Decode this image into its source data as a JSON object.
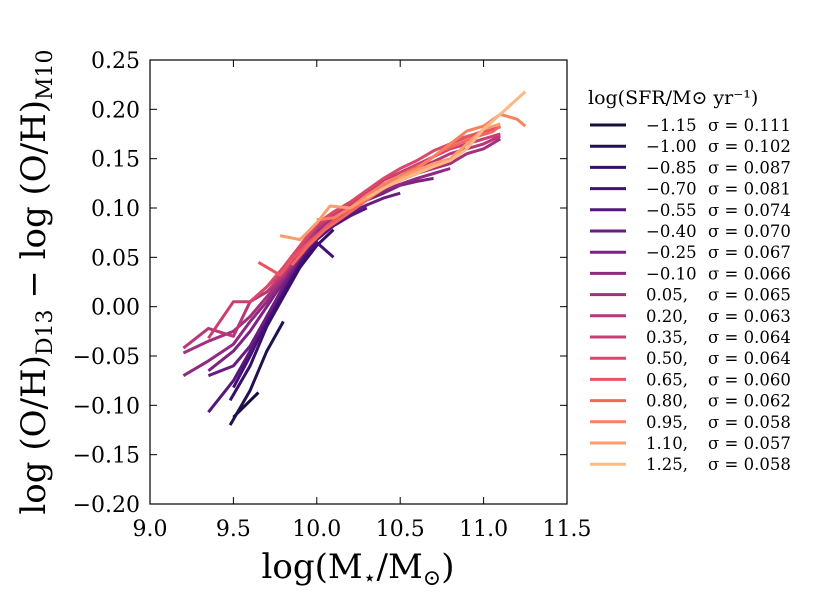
{
  "chart_data": {
    "type": "line",
    "xlabel": "log(M⋆/M⊙)",
    "ylabel": "log (O/H)D13 − log (O/H)M10",
    "ylabel_main_1": "log (O/H)",
    "ylabel_sub_1": "D13",
    "ylabel_main_2": " − log (O/H)",
    "ylabel_sub_2": "M10",
    "xlabel_main_1": "log(M",
    "xlabel_sub_1": "⋆",
    "xlabel_main_2": "/M",
    "xlabel_sub_2": "⊙",
    "xlabel_main_3": ")",
    "xlim": [
      9.0,
      11.5
    ],
    "ylim": [
      -0.2,
      0.25
    ],
    "x_ticks": [
      9.0,
      9.5,
      10.0,
      10.5,
      11.0,
      11.5
    ],
    "x_tick_labels": [
      "9.0",
      "9.5",
      "10.0",
      "10.5",
      "11.0",
      "11.5"
    ],
    "y_ticks": [
      -0.2,
      -0.15,
      -0.1,
      -0.05,
      0.0,
      0.05,
      0.1,
      0.15,
      0.2,
      0.25
    ],
    "y_tick_labels": [
      "−0.20",
      "−0.15",
      "−0.10",
      "−0.05",
      "0.00",
      "0.05",
      "0.10",
      "0.15",
      "0.20",
      "0.25"
    ],
    "legend_title": "log(SFR/M⊙ yr⁻¹)",
    "legend_position": "outside-right",
    "series": [
      {
        "name": "−1.15",
        "sigma": "σ = 0.111",
        "color": "#160f3a",
        "x": [
          9.5,
          9.65
        ],
        "y": [
          -0.112,
          -0.087
        ]
      },
      {
        "name": "−1.00",
        "sigma": "σ = 0.102",
        "color": "#221150",
        "x": [
          9.48,
          9.6,
          9.7,
          9.8
        ],
        "y": [
          -0.12,
          -0.085,
          -0.045,
          -0.015
        ]
      },
      {
        "name": "−0.85",
        "sigma": "σ = 0.087",
        "color": "#341068",
        "x": [
          9.48,
          9.6,
          9.7,
          9.8,
          9.9,
          10.0,
          10.1
        ],
        "y": [
          -0.095,
          -0.06,
          -0.02,
          0.01,
          0.04,
          0.062,
          0.078
        ]
      },
      {
        "name": "−0.70",
        "sigma": "σ = 0.081",
        "color": "#440f76",
        "x": [
          9.5,
          9.6,
          9.7,
          9.8,
          9.9,
          10.0,
          10.1
        ],
        "y": [
          -0.082,
          -0.05,
          -0.015,
          0.015,
          0.045,
          0.065,
          0.05
        ]
      },
      {
        "name": "−0.55",
        "sigma": "σ = 0.074",
        "color": "#57157e",
        "x": [
          9.35,
          9.5,
          9.6,
          9.7,
          9.8,
          9.9,
          10.0,
          10.1,
          10.2,
          10.3
        ],
        "y": [
          -0.107,
          -0.075,
          -0.045,
          -0.01,
          0.02,
          0.048,
          0.068,
          0.082,
          0.092,
          0.1
        ]
      },
      {
        "name": "−0.40",
        "sigma": "σ = 0.070",
        "color": "#6a1c81",
        "x": [
          9.35,
          9.5,
          9.6,
          9.7,
          9.8,
          9.9,
          10.0,
          10.1,
          10.2,
          10.3,
          10.4,
          10.5
        ],
        "y": [
          -0.07,
          -0.06,
          -0.04,
          -0.01,
          0.02,
          0.05,
          0.072,
          0.086,
          0.095,
          0.103,
          0.11,
          0.115
        ]
      },
      {
        "name": "−0.25",
        "sigma": "σ = 0.067",
        "color": "#7c2382",
        "x": [
          9.35,
          9.5,
          9.6,
          9.7,
          9.8,
          9.9,
          10.0,
          10.1,
          10.2,
          10.3,
          10.4,
          10.5,
          10.6,
          10.7
        ],
        "y": [
          -0.065,
          -0.045,
          -0.025,
          0.0,
          0.025,
          0.05,
          0.073,
          0.088,
          0.098,
          0.108,
          0.115,
          0.123,
          0.127,
          0.13
        ]
      },
      {
        "name": "−0.10",
        "sigma": "σ = 0.066",
        "color": "#8f2981",
        "x": [
          9.2,
          9.35,
          9.5,
          9.6,
          9.7,
          9.8,
          9.9,
          10.0,
          10.1,
          10.2,
          10.3,
          10.4,
          10.5,
          10.6,
          10.7,
          10.8
        ],
        "y": [
          -0.07,
          -0.055,
          -0.038,
          -0.015,
          0.005,
          0.028,
          0.052,
          0.075,
          0.089,
          0.1,
          0.11,
          0.118,
          0.124,
          0.13,
          0.135,
          0.14
        ]
      },
      {
        "name": "0.05,",
        "sigma": "σ = 0.065",
        "color": "#a3307e",
        "x": [
          9.2,
          9.35,
          9.5,
          9.6,
          9.7,
          9.8,
          9.9,
          10.0,
          10.1,
          10.2,
          10.3,
          10.4,
          10.5,
          10.6,
          10.7,
          10.8,
          10.9,
          11.0,
          11.1
        ],
        "y": [
          -0.047,
          -0.035,
          -0.025,
          -0.01,
          0.01,
          0.03,
          0.055,
          0.078,
          0.09,
          0.1,
          0.112,
          0.12,
          0.128,
          0.135,
          0.14,
          0.145,
          0.155,
          0.16,
          0.17
        ]
      },
      {
        "name": "0.20,",
        "sigma": "σ = 0.063",
        "color": "#b73779",
        "x": [
          9.2,
          9.35,
          9.5,
          9.6,
          9.7,
          9.8,
          9.9,
          10.0,
          10.1,
          10.2,
          10.3,
          10.4,
          10.5,
          10.6,
          10.7,
          10.8,
          10.9,
          11.0,
          11.1
        ],
        "y": [
          -0.042,
          -0.022,
          -0.03,
          0.005,
          0.015,
          0.032,
          0.058,
          0.08,
          0.092,
          0.102,
          0.114,
          0.124,
          0.132,
          0.14,
          0.147,
          0.155,
          0.16,
          0.165,
          0.173
        ]
      },
      {
        "name": "0.35,",
        "sigma": "σ = 0.064",
        "color": "#ca3e72",
        "x": [
          9.35,
          9.5,
          9.6,
          9.7,
          9.8,
          9.9,
          10.0,
          10.1,
          10.2,
          10.3,
          10.4,
          10.5,
          10.6,
          10.7,
          10.8,
          10.9,
          11.0,
          11.1
        ],
        "y": [
          -0.032,
          0.005,
          0.005,
          0.02,
          0.035,
          0.06,
          0.082,
          0.094,
          0.104,
          0.116,
          0.128,
          0.136,
          0.144,
          0.152,
          0.16,
          0.165,
          0.17,
          0.175
        ]
      },
      {
        "name": "0.50,",
        "sigma": "σ = 0.064",
        "color": "#dc4869",
        "x": [
          9.6,
          9.7,
          9.8,
          9.9,
          10.0,
          10.1,
          10.2,
          10.3,
          10.4,
          10.5,
          10.6,
          10.7,
          10.8,
          10.9,
          11.0,
          11.1
        ],
        "y": [
          0.005,
          0.02,
          0.04,
          0.062,
          0.084,
          0.096,
          0.106,
          0.118,
          0.13,
          0.14,
          0.148,
          0.158,
          0.165,
          0.172,
          0.178,
          0.182
        ]
      },
      {
        "name": "0.65,",
        "sigma": "σ = 0.060",
        "color": "#e95462",
        "x": [
          9.65,
          9.78,
          9.85,
          9.95,
          10.05,
          10.15,
          10.25,
          10.35,
          10.45,
          10.55,
          10.65,
          10.75,
          10.85,
          10.95,
          11.05
        ],
        "y": [
          0.045,
          0.032,
          0.048,
          0.065,
          0.08,
          0.094,
          0.104,
          0.116,
          0.128,
          0.138,
          0.146,
          0.158,
          0.17,
          0.175,
          0.18
        ]
      },
      {
        "name": "0.80,",
        "sigma": "σ = 0.062",
        "color": "#f3675c",
        "x": [
          9.85,
          9.95,
          10.05,
          10.15,
          10.25,
          10.35,
          10.45,
          10.55,
          10.65,
          10.75,
          10.85,
          10.95,
          11.05,
          11.1
        ],
        "y": [
          0.042,
          0.062,
          0.078,
          0.09,
          0.102,
          0.114,
          0.126,
          0.136,
          0.146,
          0.158,
          0.165,
          0.172,
          0.177,
          0.183
        ]
      },
      {
        "name": "0.95,",
        "sigma": "σ = 0.058",
        "color": "#f8815f",
        "x": [
          10.0,
          10.1,
          10.2,
          10.3,
          10.4,
          10.5,
          10.6,
          10.7,
          10.8,
          10.9,
          11.0,
          11.1,
          11.2,
          11.25
        ],
        "y": [
          0.088,
          0.09,
          0.1,
          0.113,
          0.124,
          0.133,
          0.14,
          0.152,
          0.165,
          0.178,
          0.183,
          0.195,
          0.19,
          0.183
        ]
      },
      {
        "name": "1.10,",
        "sigma": "σ = 0.057",
        "color": "#fc9d6d",
        "x": [
          9.78,
          9.9,
          10.0,
          10.08,
          10.2,
          10.3,
          10.4,
          10.5,
          10.6,
          10.7,
          10.8,
          10.9,
          11.0,
          11.1
        ],
        "y": [
          0.072,
          0.068,
          0.085,
          0.102,
          0.1,
          0.11,
          0.12,
          0.13,
          0.138,
          0.145,
          0.15,
          0.165,
          0.18,
          0.185
        ]
      },
      {
        "name": "1.25,",
        "sigma": "σ = 0.058",
        "color": "#fdb883",
        "x": [
          10.3,
          10.4,
          10.5,
          10.6,
          10.7,
          10.8,
          10.9,
          11.0,
          11.1,
          11.25
        ],
        "y": [
          0.11,
          0.12,
          0.128,
          0.135,
          0.142,
          0.148,
          0.16,
          0.18,
          0.195,
          0.218
        ]
      }
    ]
  }
}
